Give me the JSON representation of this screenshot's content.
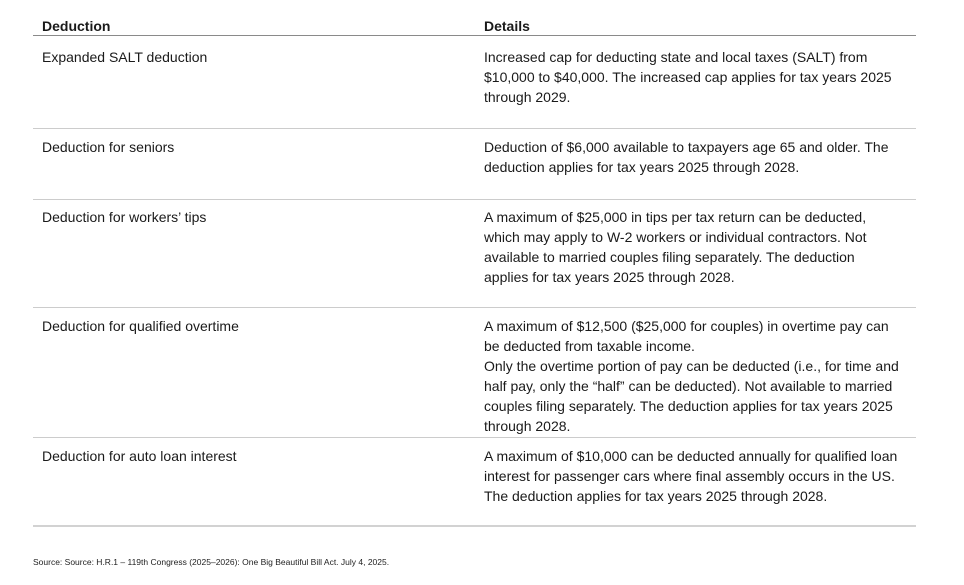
{
  "table": {
    "columns": [
      "Deduction",
      "Details"
    ],
    "rows": [
      {
        "deduction": "Expanded SALT deduction",
        "details": "Increased cap for deducting state and local taxes (SALT) from $10,000 to $40,000. The increased cap applies for tax years 2025 through 2029."
      },
      {
        "deduction": "Deduction for seniors",
        "details": "Deduction of $6,000 available to taxpayers age 65 and older. The deduction applies for tax years 2025 through 2028."
      },
      {
        "deduction": "Deduction for workers’ tips",
        "details": "A maximum of $25,000 in tips per tax return can be deducted, which may apply to W-2 workers or individual contractors. Not available to married couples filing separately. The deduction applies for tax years 2025 through 2028."
      },
      {
        "deduction": "Deduction for qualified overtime",
        "details": [
          "A maximum of $12,500 ($25,000 for couples) in overtime pay can be deducted from taxable income.",
          "Only the overtime portion of pay can be deducted (i.e., for time and half pay, only the “half” can be deducted). Not available to married couples filing separately. The deduction applies for tax years 2025 through 2028."
        ]
      },
      {
        "deduction": "Deduction for auto loan interest",
        "details": "A maximum of $10,000 can be deducted annually for qualified loan interest for passenger cars where final assembly occurs in the US. The deduction applies for tax years 2025 through 2028."
      }
    ]
  },
  "footer": {
    "source": "Source: Source: H.R.1 – 119th Congress (2025–2026): One Big Beautiful Bill Act. July 4, 2025."
  },
  "colors": {
    "background": "#ffffff",
    "text": "#1a1a1a",
    "header_rule": "#8a8a8a",
    "row_rule": "#cccccc",
    "bottom_rule": "#d2d2d2"
  }
}
